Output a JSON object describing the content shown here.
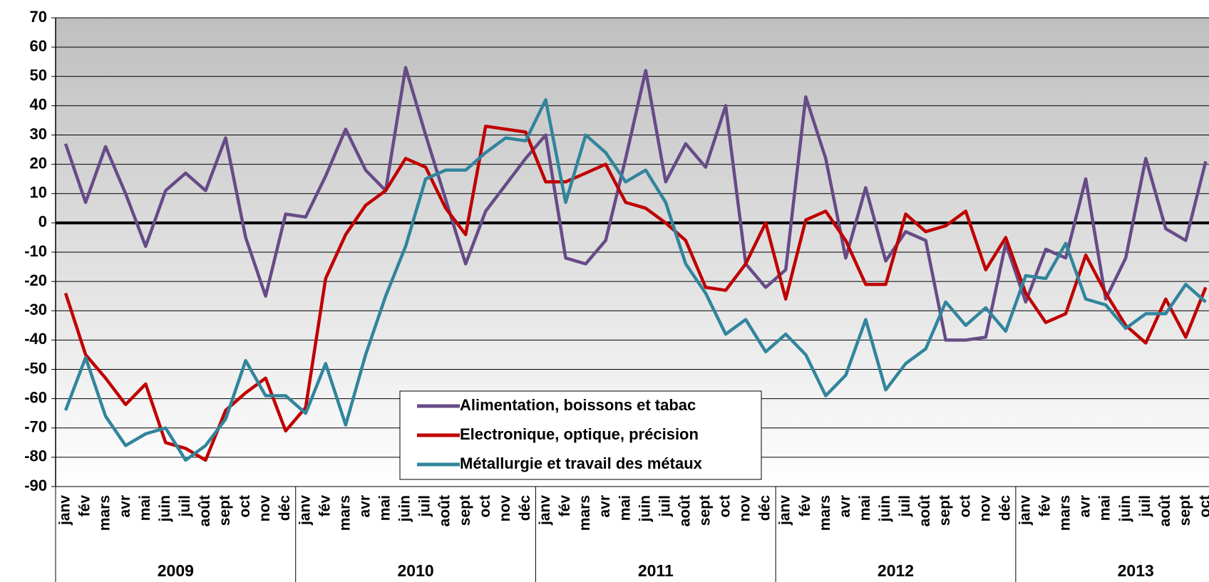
{
  "chart_data": {
    "type": "line",
    "categories": [
      "janv",
      "fév",
      "mars",
      "avr",
      "mai",
      "juin",
      "juil",
      "août",
      "sept",
      "oct",
      "nov",
      "déc",
      "janv",
      "fév",
      "mars",
      "avr",
      "mai",
      "juin",
      "juil",
      "août",
      "sept",
      "oct",
      "nov",
      "déc",
      "janv",
      "fév",
      "mars",
      "avr",
      "mai",
      "juin",
      "juil",
      "août",
      "sept",
      "oct",
      "nov",
      "déc",
      "janv",
      "fév",
      "mars",
      "avr",
      "mai",
      "juin",
      "juil",
      "août",
      "sept",
      "oct",
      "nov",
      "déc",
      "janv",
      "fév",
      "mars",
      "avr",
      "mai",
      "juin",
      "juil",
      "août",
      "sept",
      "oct"
    ],
    "groups": [
      "2009",
      "2010",
      "2011",
      "2012",
      "2013"
    ],
    "series": [
      {
        "name": "Alimentation, boissons et tabac",
        "color": "#674b87",
        "values": [
          27,
          7,
          26,
          10,
          -8,
          11,
          17,
          11,
          29,
          -5,
          -25,
          3,
          2,
          16,
          32,
          18,
          11,
          53,
          30,
          8,
          -14,
          4,
          13,
          22,
          30,
          -12,
          -14,
          -6,
          22,
          52,
          14,
          27,
          19,
          40,
          -14,
          -22,
          -16,
          43,
          22,
          -12,
          12,
          -13,
          -3,
          -6,
          -40,
          -40,
          -39,
          -7,
          -27,
          -9,
          -12,
          15,
          -26,
          -12,
          22,
          -2,
          -6,
          21
        ]
      },
      {
        "name": "Electronique, optique, précision",
        "color": "#c00000",
        "values": [
          -24,
          -45,
          -53,
          -62,
          -55,
          -75,
          -77,
          -81,
          -64,
          -58,
          -53,
          -71,
          -63,
          -19,
          -4,
          6,
          11,
          22,
          19,
          5,
          -4,
          33,
          32,
          31,
          14,
          14,
          17,
          20,
          7,
          5,
          0,
          -6,
          -22,
          -23,
          -14,
          0,
          -26,
          1,
          4,
          -6,
          -21,
          -21,
          3,
          -3,
          -1,
          4,
          -16,
          -5,
          -24,
          -34,
          -31,
          -11,
          -24,
          -35,
          -41,
          -26,
          -39,
          -22
        ]
      },
      {
        "name": "Métallurgie et travail des métaux",
        "color": "#31859c",
        "values": [
          -64,
          -46,
          -66,
          -76,
          -72,
          -70,
          -81,
          -76,
          -67,
          -47,
          -59,
          -59,
          -65,
          -48,
          -69,
          -45,
          -25,
          -8,
          15,
          18,
          18,
          24,
          29,
          28,
          42,
          7,
          30,
          24,
          14,
          18,
          7,
          -14,
          -24,
          -38,
          -33,
          -44,
          -38,
          -45,
          -59,
          -52,
          -33,
          -57,
          -48,
          -43,
          -27,
          -35,
          -29,
          -37,
          -18,
          -19,
          -7,
          -26,
          -28,
          -36,
          -31,
          -31,
          -21,
          -27
        ]
      }
    ],
    "ylim": [
      -90,
      70
    ],
    "yticks": [
      -90,
      -80,
      -70,
      -60,
      -50,
      -40,
      -30,
      -20,
      -10,
      0,
      10,
      20,
      30,
      40,
      50,
      60,
      70
    ],
    "grid": true
  }
}
